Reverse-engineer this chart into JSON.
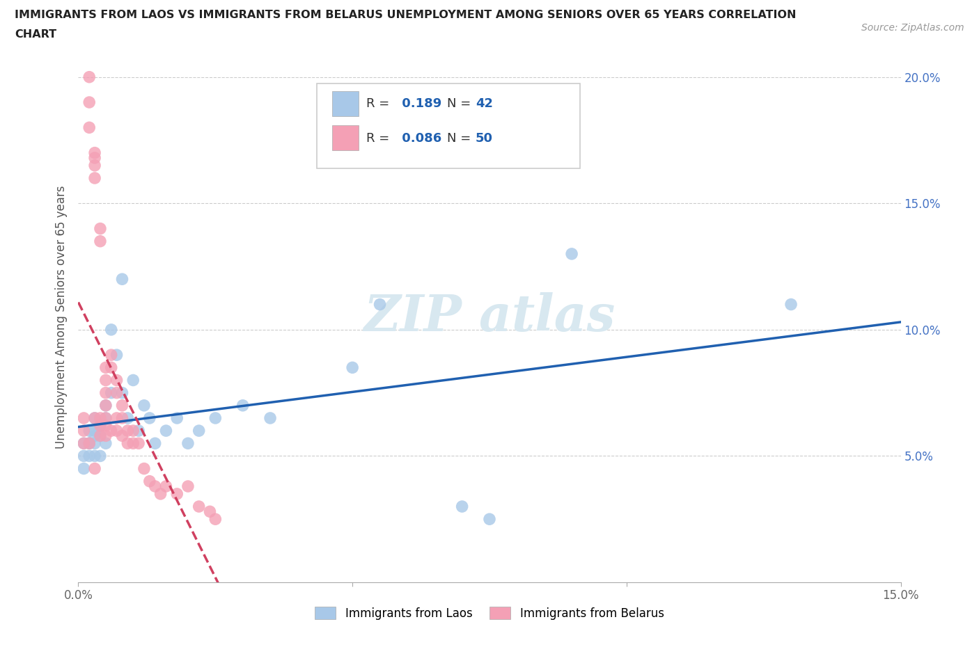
{
  "title_line1": "IMMIGRANTS FROM LAOS VS IMMIGRANTS FROM BELARUS UNEMPLOYMENT AMONG SENIORS OVER 65 YEARS CORRELATION",
  "title_line2": "CHART",
  "source": "Source: ZipAtlas.com",
  "xlabel_laos": "Immigrants from Laos",
  "xlabel_belarus": "Immigrants from Belarus",
  "ylabel": "Unemployment Among Seniors over 65 years",
  "xlim": [
    0.0,
    0.15
  ],
  "ylim": [
    0.0,
    0.21
  ],
  "xticks": [
    0.0,
    0.05,
    0.1,
    0.15
  ],
  "xtick_labels": [
    "0.0%",
    "",
    "",
    "15.0%"
  ],
  "yticks": [
    0.05,
    0.1,
    0.15,
    0.2
  ],
  "ytick_labels": [
    "5.0%",
    "10.0%",
    "15.0%",
    "20.0%"
  ],
  "laos_color": "#a8c8e8",
  "belarus_color": "#f4a0b5",
  "laos_line_color": "#2060b0",
  "belarus_line_color": "#d04060",
  "R_laos": 0.189,
  "N_laos": 42,
  "R_belarus": 0.086,
  "N_belarus": 50,
  "laos_x": [
    0.001,
    0.001,
    0.001,
    0.002,
    0.002,
    0.002,
    0.002,
    0.003,
    0.003,
    0.003,
    0.003,
    0.003,
    0.004,
    0.004,
    0.004,
    0.005,
    0.005,
    0.005,
    0.006,
    0.006,
    0.007,
    0.008,
    0.008,
    0.009,
    0.01,
    0.011,
    0.012,
    0.013,
    0.014,
    0.016,
    0.018,
    0.02,
    0.022,
    0.025,
    0.03,
    0.035,
    0.05,
    0.055,
    0.07,
    0.075,
    0.09,
    0.13
  ],
  "laos_y": [
    0.055,
    0.05,
    0.045,
    0.06,
    0.055,
    0.055,
    0.05,
    0.065,
    0.06,
    0.058,
    0.055,
    0.05,
    0.062,
    0.058,
    0.05,
    0.07,
    0.065,
    0.055,
    0.075,
    0.1,
    0.09,
    0.12,
    0.075,
    0.065,
    0.08,
    0.06,
    0.07,
    0.065,
    0.055,
    0.06,
    0.065,
    0.055,
    0.06,
    0.065,
    0.07,
    0.065,
    0.085,
    0.11,
    0.03,
    0.025,
    0.13,
    0.11
  ],
  "belarus_x": [
    0.001,
    0.001,
    0.002,
    0.002,
    0.002,
    0.003,
    0.003,
    0.003,
    0.003,
    0.003,
    0.004,
    0.004,
    0.004,
    0.004,
    0.004,
    0.005,
    0.005,
    0.005,
    0.005,
    0.005,
    0.005,
    0.005,
    0.006,
    0.006,
    0.006,
    0.007,
    0.007,
    0.007,
    0.007,
    0.008,
    0.008,
    0.008,
    0.009,
    0.009,
    0.01,
    0.01,
    0.011,
    0.012,
    0.013,
    0.014,
    0.015,
    0.016,
    0.018,
    0.02,
    0.022,
    0.024,
    0.025,
    0.001,
    0.002,
    0.003
  ],
  "belarus_y": [
    0.06,
    0.055,
    0.2,
    0.19,
    0.18,
    0.17,
    0.168,
    0.165,
    0.16,
    0.065,
    0.14,
    0.135,
    0.065,
    0.062,
    0.058,
    0.085,
    0.08,
    0.075,
    0.07,
    0.065,
    0.062,
    0.058,
    0.09,
    0.085,
    0.06,
    0.08,
    0.075,
    0.065,
    0.06,
    0.07,
    0.065,
    0.058,
    0.06,
    0.055,
    0.06,
    0.055,
    0.055,
    0.045,
    0.04,
    0.038,
    0.035,
    0.038,
    0.035,
    0.038,
    0.03,
    0.028,
    0.025,
    0.065,
    0.055,
    0.045
  ]
}
